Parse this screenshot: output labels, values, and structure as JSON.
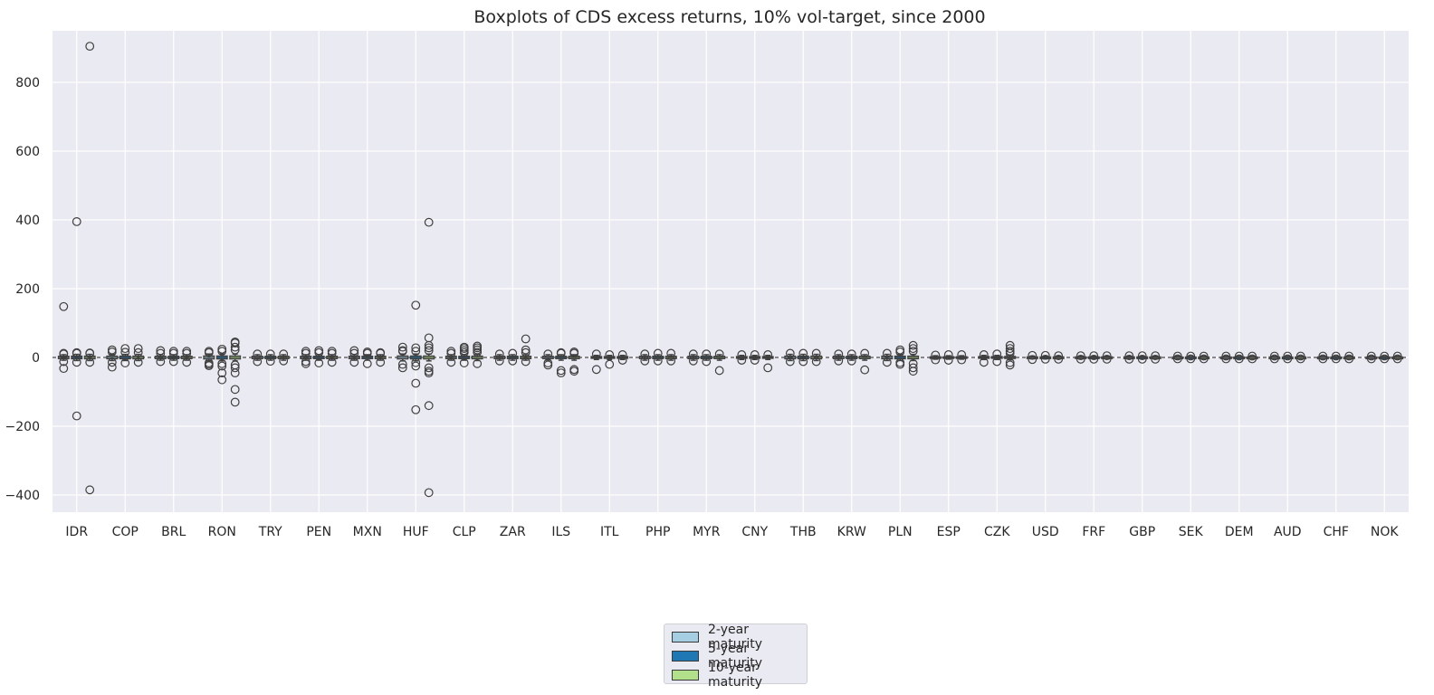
{
  "chart_data": {
    "type": "box",
    "title": "Boxplots of CDS excess returns, 10% vol-target, since 2000",
    "xlabel": "",
    "ylabel": "",
    "ylim": [
      -450,
      950
    ],
    "yticks": [
      -400,
      -200,
      0,
      200,
      400,
      600,
      800
    ],
    "ytick_labels": [
      "−400",
      "−200",
      "0",
      "200",
      "400",
      "600",
      "800"
    ],
    "categories": [
      "IDR",
      "COP",
      "BRL",
      "RON",
      "TRY",
      "PEN",
      "MXN",
      "HUF",
      "CLP",
      "ZAR",
      "ILS",
      "ITL",
      "PHP",
      "MYR",
      "CNY",
      "THB",
      "KRW",
      "PLN",
      "ESP",
      "CZK",
      "USD",
      "FRF",
      "GBP",
      "SEK",
      "DEM",
      "AUD",
      "CHF",
      "NOK"
    ],
    "reference_line": {
      "y": 0,
      "style": "dashed",
      "color": "#222222"
    },
    "grid": true,
    "legend_placement": "below center",
    "series": [
      {
        "name": "2-year maturity",
        "color": "#a6cee3"
      },
      {
        "name": "5-year maturity",
        "color": "#1f78b4"
      },
      {
        "name": "10-year maturity",
        "color": "#b2df8a"
      }
    ],
    "boxes": [
      {
        "category": "IDR",
        "maturity": "2-year maturity",
        "whisker": [
          -8,
          8
        ],
        "outliers": [
          148,
          -32,
          -12,
          10,
          12
        ]
      },
      {
        "category": "IDR",
        "maturity": "5-year maturity",
        "whisker": [
          -9,
          9
        ],
        "outliers": [
          395,
          -170,
          -14,
          12,
          14
        ]
      },
      {
        "category": "IDR",
        "maturity": "10-year maturity",
        "whisker": [
          -9,
          9
        ],
        "outliers": [
          905,
          -385,
          -14,
          12,
          13
        ]
      },
      {
        "category": "COP",
        "maturity": "2-year maturity",
        "whisker": [
          -9,
          9
        ],
        "outliers": [
          22,
          -28,
          16,
          -14
        ]
      },
      {
        "category": "COP",
        "maturity": "5-year maturity",
        "whisker": [
          -9,
          9
        ],
        "outliers": [
          26,
          -16,
          15
        ]
      },
      {
        "category": "COP",
        "maturity": "10-year maturity",
        "whisker": [
          -9,
          9
        ],
        "outliers": [
          26,
          -14,
          14
        ]
      },
      {
        "category": "BRL",
        "maturity": "2-year maturity",
        "whisker": [
          -8,
          8
        ],
        "outliers": [
          20,
          -12,
          12
        ]
      },
      {
        "category": "BRL",
        "maturity": "5-year maturity",
        "whisker": [
          -8,
          8
        ],
        "outliers": [
          18,
          -12,
          12
        ]
      },
      {
        "category": "BRL",
        "maturity": "10-year maturity",
        "whisker": [
          -8,
          8
        ],
        "outliers": [
          18,
          -14,
          12
        ]
      },
      {
        "category": "RON",
        "maturity": "2-year maturity",
        "whisker": [
          -10,
          10
        ],
        "outliers": [
          18,
          -24,
          -20,
          14,
          -16
        ]
      },
      {
        "category": "RON",
        "maturity": "5-year maturity",
        "whisker": [
          -10,
          10
        ],
        "outliers": [
          24,
          -45,
          -65,
          -25,
          18,
          -18
        ]
      },
      {
        "category": "RON",
        "maturity": "10-year maturity",
        "whisker": [
          -10,
          10
        ],
        "outliers": [
          45,
          42,
          -130,
          -93,
          -45,
          -30,
          30,
          22,
          -22
        ]
      },
      {
        "category": "TRY",
        "maturity": "2-year maturity",
        "whisker": [
          -8,
          8
        ],
        "outliers": [
          10,
          -12
        ]
      },
      {
        "category": "TRY",
        "maturity": "5-year maturity",
        "whisker": [
          -8,
          8
        ],
        "outliers": [
          10,
          -11
        ]
      },
      {
        "category": "TRY",
        "maturity": "10-year maturity",
        "whisker": [
          -8,
          8
        ],
        "outliers": [
          10,
          -10
        ]
      },
      {
        "category": "PEN",
        "maturity": "2-year maturity",
        "whisker": [
          -8,
          8
        ],
        "outliers": [
          18,
          -18,
          12,
          -12
        ]
      },
      {
        "category": "PEN",
        "maturity": "5-year maturity",
        "whisker": [
          -8,
          8
        ],
        "outliers": [
          20,
          -16,
          14
        ]
      },
      {
        "category": "PEN",
        "maturity": "10-year maturity",
        "whisker": [
          -8,
          8
        ],
        "outliers": [
          18,
          -14,
          12
        ]
      },
      {
        "category": "MXN",
        "maturity": "2-year maturity",
        "whisker": [
          -8,
          8
        ],
        "outliers": [
          20,
          -14,
          12
        ]
      },
      {
        "category": "MXN",
        "maturity": "5-year maturity",
        "whisker": [
          -8,
          8
        ],
        "outliers": [
          16,
          -18,
          12
        ]
      },
      {
        "category": "MXN",
        "maturity": "10-year maturity",
        "whisker": [
          -8,
          8
        ],
        "outliers": [
          14,
          -14,
          12
        ]
      },
      {
        "category": "HUF",
        "maturity": "2-year maturity",
        "whisker": [
          -10,
          10
        ],
        "outliers": [
          30,
          -30,
          -20,
          18,
          20
        ]
      },
      {
        "category": "HUF",
        "maturity": "5-year maturity",
        "whisker": [
          -10,
          10
        ],
        "outliers": [
          152,
          28,
          -75,
          -152,
          -25,
          18,
          -15
        ]
      },
      {
        "category": "HUF",
        "maturity": "10-year maturity",
        "whisker": [
          -10,
          10
        ],
        "outliers": [
          393,
          57,
          35,
          28,
          20,
          -30,
          -40,
          -45,
          -140,
          -393
        ]
      },
      {
        "category": "CLP",
        "maturity": "2-year maturity",
        "whisker": [
          -8,
          8
        ],
        "outliers": [
          18,
          -14,
          12
        ]
      },
      {
        "category": "CLP",
        "maturity": "5-year maturity",
        "whisker": [
          -8,
          8
        ],
        "outliers": [
          30,
          26,
          20,
          -16,
          14
        ]
      },
      {
        "category": "CLP",
        "maturity": "10-year maturity",
        "whisker": [
          -9,
          9
        ],
        "outliers": [
          33,
          28,
          22,
          -18,
          15
        ]
      },
      {
        "category": "ZAR",
        "maturity": "2-year maturity",
        "whisker": [
          -8,
          8
        ],
        "outliers": [
          10,
          -10
        ]
      },
      {
        "category": "ZAR",
        "maturity": "5-year maturity",
        "whisker": [
          -8,
          8
        ],
        "outliers": [
          12,
          -10
        ]
      },
      {
        "category": "ZAR",
        "maturity": "10-year maturity",
        "whisker": [
          -8,
          8
        ],
        "outliers": [
          54,
          22,
          14,
          -12
        ]
      },
      {
        "category": "ILS",
        "maturity": "2-year maturity",
        "whisker": [
          -8,
          8
        ],
        "outliers": [
          -22,
          -16,
          10
        ]
      },
      {
        "category": "ILS",
        "maturity": "5-year maturity",
        "whisker": [
          -8,
          8
        ],
        "outliers": [
          -45,
          -38,
          14,
          12
        ]
      },
      {
        "category": "ILS",
        "maturity": "10-year maturity",
        "whisker": [
          -8,
          8
        ],
        "outliers": [
          -40,
          -35,
          16,
          12
        ]
      },
      {
        "category": "ITL",
        "maturity": "2-year maturity",
        "whisker": [
          -6,
          6
        ],
        "outliers": [
          -35,
          10
        ]
      },
      {
        "category": "ITL",
        "maturity": "5-year maturity",
        "whisker": [
          -6,
          6
        ],
        "outliers": [
          -20,
          8
        ]
      },
      {
        "category": "ITL",
        "maturity": "10-year maturity",
        "whisker": [
          -6,
          6
        ],
        "outliers": [
          8,
          -8
        ]
      },
      {
        "category": "PHP",
        "maturity": "2-year maturity",
        "whisker": [
          -8,
          8
        ],
        "outliers": [
          10,
          -10
        ]
      },
      {
        "category": "PHP",
        "maturity": "5-year maturity",
        "whisker": [
          -8,
          8
        ],
        "outliers": [
          12,
          -10
        ]
      },
      {
        "category": "PHP",
        "maturity": "10-year maturity",
        "whisker": [
          -8,
          8
        ],
        "outliers": [
          12,
          -10
        ]
      },
      {
        "category": "MYR",
        "maturity": "2-year maturity",
        "whisker": [
          -8,
          8
        ],
        "outliers": [
          10,
          -10
        ]
      },
      {
        "category": "MYR",
        "maturity": "5-year maturity",
        "whisker": [
          -8,
          8
        ],
        "outliers": [
          10,
          -12
        ]
      },
      {
        "category": "MYR",
        "maturity": "10-year maturity",
        "whisker": [
          -8,
          8
        ],
        "outliers": [
          -38,
          10
        ]
      },
      {
        "category": "CNY",
        "maturity": "2-year maturity",
        "whisker": [
          -6,
          6
        ],
        "outliers": [
          8,
          -8
        ]
      },
      {
        "category": "CNY",
        "maturity": "5-year maturity",
        "whisker": [
          -6,
          6
        ],
        "outliers": [
          8,
          -8
        ]
      },
      {
        "category": "CNY",
        "maturity": "10-year maturity",
        "whisker": [
          -6,
          6
        ],
        "outliers": [
          -30,
          8
        ]
      },
      {
        "category": "THB",
        "maturity": "2-year maturity",
        "whisker": [
          -9,
          9
        ],
        "outliers": [
          12,
          -12
        ]
      },
      {
        "category": "THB",
        "maturity": "5-year maturity",
        "whisker": [
          -9,
          9
        ],
        "outliers": [
          12,
          -12
        ]
      },
      {
        "category": "THB",
        "maturity": "10-year maturity",
        "whisker": [
          -9,
          9
        ],
        "outliers": [
          12,
          -12
        ]
      },
      {
        "category": "KRW",
        "maturity": "2-year maturity",
        "whisker": [
          -8,
          8
        ],
        "outliers": [
          10,
          -10
        ]
      },
      {
        "category": "KRW",
        "maturity": "5-year maturity",
        "whisker": [
          -8,
          8
        ],
        "outliers": [
          10,
          -10
        ]
      },
      {
        "category": "KRW",
        "maturity": "10-year maturity",
        "whisker": [
          -8,
          8
        ],
        "outliers": [
          -36,
          12
        ]
      },
      {
        "category": "PLN",
        "maturity": "2-year maturity",
        "whisker": [
          -9,
          9
        ],
        "outliers": [
          12,
          -14
        ]
      },
      {
        "category": "PLN",
        "maturity": "5-year maturity",
        "whisker": [
          -9,
          9
        ],
        "outliers": [
          22,
          16,
          -20,
          -15
        ]
      },
      {
        "category": "PLN",
        "maturity": "10-year maturity",
        "whisker": [
          -9,
          9
        ],
        "outliers": [
          35,
          26,
          -40,
          -30,
          18,
          -18
        ]
      },
      {
        "category": "ESP",
        "maturity": "2-year maturity",
        "whisker": [
          -5,
          5
        ],
        "outliers": [
          7,
          -7
        ]
      },
      {
        "category": "ESP",
        "maturity": "5-year maturity",
        "whisker": [
          -5,
          5
        ],
        "outliers": [
          8,
          -8
        ]
      },
      {
        "category": "ESP",
        "maturity": "10-year maturity",
        "whisker": [
          -5,
          5
        ],
        "outliers": [
          8,
          -7
        ]
      },
      {
        "category": "CZK",
        "maturity": "2-year maturity",
        "whisker": [
          -6,
          6
        ],
        "outliers": [
          -14,
          8
        ]
      },
      {
        "category": "CZK",
        "maturity": "5-year maturity",
        "whisker": [
          -6,
          6
        ],
        "outliers": [
          10,
          -12
        ]
      },
      {
        "category": "CZK",
        "maturity": "10-year maturity",
        "whisker": [
          -7,
          7
        ],
        "outliers": [
          35,
          26,
          18,
          -22,
          -15,
          12
        ]
      },
      {
        "category": "USD",
        "maturity": "2-year maturity",
        "whisker": [
          -4,
          4
        ],
        "outliers": [
          6,
          -6
        ]
      },
      {
        "category": "USD",
        "maturity": "5-year maturity",
        "whisker": [
          -4,
          4
        ],
        "outliers": [
          6,
          -5
        ]
      },
      {
        "category": "USD",
        "maturity": "10-year maturity",
        "whisker": [
          -4,
          4
        ],
        "outliers": [
          5,
          -5
        ]
      },
      {
        "category": "FRF",
        "maturity": "2-year maturity",
        "whisker": [
          -4,
          4
        ],
        "outliers": [
          5,
          -5
        ]
      },
      {
        "category": "FRF",
        "maturity": "5-year maturity",
        "whisker": [
          -4,
          4
        ],
        "outliers": [
          5,
          -5
        ]
      },
      {
        "category": "FRF",
        "maturity": "10-year maturity",
        "whisker": [
          -4,
          4
        ],
        "outliers": [
          5,
          -5
        ]
      },
      {
        "category": "GBP",
        "maturity": "2-year maturity",
        "whisker": [
          -4,
          4
        ],
        "outliers": [
          5,
          -5
        ]
      },
      {
        "category": "GBP",
        "maturity": "5-year maturity",
        "whisker": [
          -4,
          4
        ],
        "outliers": [
          5,
          -5
        ]
      },
      {
        "category": "GBP",
        "maturity": "10-year maturity",
        "whisker": [
          -4,
          4
        ],
        "outliers": [
          5,
          -5
        ]
      },
      {
        "category": "SEK",
        "maturity": "2-year maturity",
        "whisker": [
          -3,
          3
        ],
        "outliers": [
          4,
          -4
        ]
      },
      {
        "category": "SEK",
        "maturity": "5-year maturity",
        "whisker": [
          -3,
          3
        ],
        "outliers": [
          4,
          -4
        ]
      },
      {
        "category": "SEK",
        "maturity": "10-year maturity",
        "whisker": [
          -3,
          3
        ],
        "outliers": [
          4,
          -4
        ]
      },
      {
        "category": "DEM",
        "maturity": "2-year maturity",
        "whisker": [
          -3,
          3
        ],
        "outliers": [
          4,
          -4
        ]
      },
      {
        "category": "DEM",
        "maturity": "5-year maturity",
        "whisker": [
          -3,
          3
        ],
        "outliers": [
          4,
          -4
        ]
      },
      {
        "category": "DEM",
        "maturity": "10-year maturity",
        "whisker": [
          -3,
          3
        ],
        "outliers": [
          4,
          -4
        ]
      },
      {
        "category": "AUD",
        "maturity": "2-year maturity",
        "whisker": [
          -3,
          3
        ],
        "outliers": [
          4,
          -4
        ]
      },
      {
        "category": "AUD",
        "maturity": "5-year maturity",
        "whisker": [
          -3,
          3
        ],
        "outliers": [
          4,
          -4
        ]
      },
      {
        "category": "AUD",
        "maturity": "10-year maturity",
        "whisker": [
          -3,
          3
        ],
        "outliers": [
          4,
          -4
        ]
      },
      {
        "category": "CHF",
        "maturity": "2-year maturity",
        "whisker": [
          -3,
          3
        ],
        "outliers": [
          4,
          -4
        ]
      },
      {
        "category": "CHF",
        "maturity": "5-year maturity",
        "whisker": [
          -3,
          3
        ],
        "outliers": [
          4,
          -4
        ]
      },
      {
        "category": "CHF",
        "maturity": "10-year maturity",
        "whisker": [
          -3,
          3
        ],
        "outliers": [
          4,
          -4
        ]
      },
      {
        "category": "NOK",
        "maturity": "2-year maturity",
        "whisker": [
          -3,
          3
        ],
        "outliers": [
          4,
          -4
        ]
      },
      {
        "category": "NOK",
        "maturity": "5-year maturity",
        "whisker": [
          -3,
          3
        ],
        "outliers": [
          4,
          -4
        ]
      },
      {
        "category": "NOK",
        "maturity": "10-year maturity",
        "whisker": [
          -3,
          3
        ],
        "outliers": [
          4,
          -4
        ]
      }
    ]
  }
}
